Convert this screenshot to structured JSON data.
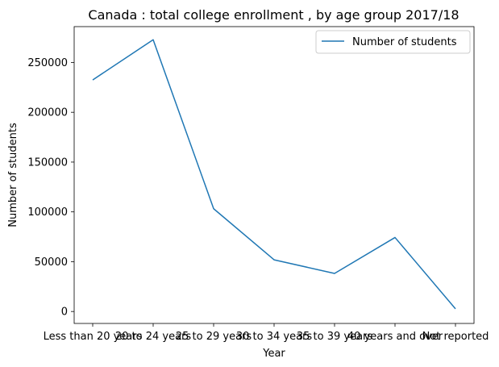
{
  "chart_data": {
    "type": "line",
    "title": "Canada : total college enrollment , by age group 2017/18",
    "xlabel": "Year",
    "ylabel": "Number of students",
    "categories": [
      "Less than 20 years",
      "20 to 24 years",
      "25 to 29 years",
      "30 to 34 years",
      "35 to 39 years",
      "40 years and over",
      "Not reported"
    ],
    "series": [
      {
        "name": "Number of students",
        "values": [
          232500,
          272800,
          103200,
          51900,
          38200,
          74300,
          2700
        ]
      }
    ],
    "ylim": [
      -12000,
      286000
    ],
    "yticks": [
      0,
      50000,
      100000,
      150000,
      200000,
      250000
    ],
    "ytick_labels": [
      "0",
      "50000",
      "100000",
      "150000",
      "200000",
      "250000"
    ],
    "grid": false,
    "legend_position": "top-right",
    "colors": {
      "series": "#1f77b4",
      "axes": "#000000"
    }
  }
}
